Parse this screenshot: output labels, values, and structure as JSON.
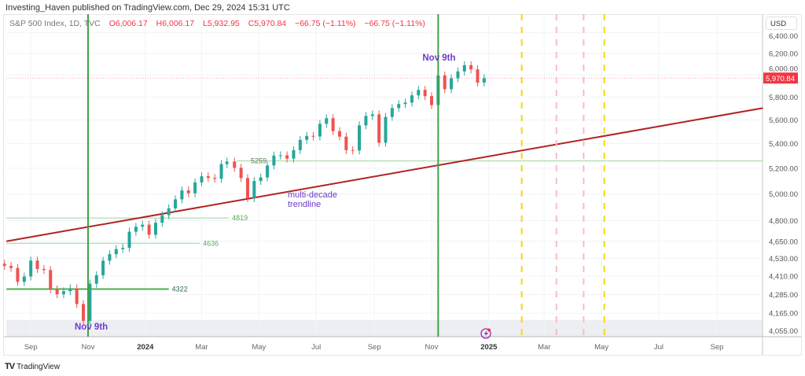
{
  "publisher_line": "Investing_Haven published on TradingView.com, Dec 29, 2024 15:31 UTC",
  "legend": {
    "symbol": "S&P 500 Index, 1D, TVC",
    "open": "O6,006.17",
    "high": "H6,006.17",
    "low": "L5,932.95",
    "close": "C5,970.84",
    "change1": "−66.75 (−1.11%)",
    "change2": "−66.75 (−1.11%)"
  },
  "currency": "USD",
  "colors": {
    "up": "#26a69a",
    "down": "#ef5350",
    "trendline": "#b22222",
    "level": "#4caf50",
    "level_light": "#9cd49c",
    "vline": "#43a047",
    "yellow_dash": "#f5d90a",
    "pink_dash": "#f8bbc8",
    "label": "#6e3cc8",
    "last_price": "#f23645"
  },
  "chart_data": {
    "type": "candlestick",
    "title": "",
    "y_scale": "log",
    "ylim": [
      4000,
      6450
    ],
    "xlim": [
      "2023-08-06",
      "2025-10-20"
    ],
    "grid": true,
    "y_ticks": [
      "6,400.00",
      "6,200.00",
      "6,000.00",
      "5,800.00",
      "5,600.00",
      "5,400.00",
      "5,200.00",
      "5,000.00",
      "4,800.00",
      "4,650.00",
      "4,530.00",
      "4,410.00",
      "4,285.00",
      "4,165.00",
      "4,055.00"
    ],
    "y_tick_values": [
      6400,
      6200,
      6000,
      5800,
      5600,
      5400,
      5200,
      5000,
      4800,
      4650,
      4530,
      4410,
      4285,
      4165,
      4055
    ],
    "x_ticks": [
      {
        "label": "Sep",
        "date": "2023-09-01"
      },
      {
        "label": "Nov",
        "date": "2023-11-01"
      },
      {
        "label": "2024",
        "date": "2024-01-01",
        "bold": true
      },
      {
        "label": "Mar",
        "date": "2024-03-01"
      },
      {
        "label": "May",
        "date": "2024-05-01"
      },
      {
        "label": "Jul",
        "date": "2024-07-01"
      },
      {
        "label": "Sep",
        "date": "2024-09-01"
      },
      {
        "label": "Nov",
        "date": "2024-11-01"
      },
      {
        "label": "2025",
        "date": "2025-01-01",
        "bold": true
      },
      {
        "label": "Mar",
        "date": "2025-03-01"
      },
      {
        "label": "May",
        "date": "2025-05-01"
      },
      {
        "label": "Jul",
        "date": "2025-07-01"
      },
      {
        "label": "Sep",
        "date": "2025-09-01"
      }
    ],
    "dates": [
      "2023-08-04",
      "2023-08-11",
      "2023-08-18",
      "2023-08-25",
      "2023-09-01",
      "2023-09-08",
      "2023-09-15",
      "2023-09-22",
      "2023-09-29",
      "2023-10-06",
      "2023-10-13",
      "2023-10-20",
      "2023-10-27",
      "2023-11-03",
      "2023-11-10",
      "2023-11-17",
      "2023-11-24",
      "2023-12-01",
      "2023-12-08",
      "2023-12-15",
      "2023-12-22",
      "2023-12-29",
      "2024-01-05",
      "2024-01-12",
      "2024-01-19",
      "2024-01-26",
      "2024-02-02",
      "2024-02-09",
      "2024-02-16",
      "2024-02-23",
      "2024-03-01",
      "2024-03-08",
      "2024-03-15",
      "2024-03-22",
      "2024-03-28",
      "2024-04-05",
      "2024-04-12",
      "2024-04-19",
      "2024-04-26",
      "2024-05-03",
      "2024-05-10",
      "2024-05-17",
      "2024-05-24",
      "2024-05-31",
      "2024-06-07",
      "2024-06-14",
      "2024-06-21",
      "2024-06-28",
      "2024-07-05",
      "2024-07-12",
      "2024-07-19",
      "2024-07-26",
      "2024-08-02",
      "2024-08-09",
      "2024-08-16",
      "2024-08-23",
      "2024-08-30",
      "2024-09-06",
      "2024-09-13",
      "2024-09-20",
      "2024-09-27",
      "2024-10-04",
      "2024-10-11",
      "2024-10-18",
      "2024-10-25",
      "2024-11-01",
      "2024-11-08",
      "2024-11-15",
      "2024-11-22",
      "2024-11-29",
      "2024-12-06",
      "2024-12-13",
      "2024-12-20",
      "2024-12-27"
    ],
    "close": [
      4478,
      4464,
      4370,
      4406,
      4515,
      4457,
      4450,
      4320,
      4288,
      4308,
      4327,
      4224,
      4117,
      4358,
      4415,
      4514,
      4559,
      4595,
      4604,
      4719,
      4755,
      4770,
      4697,
      4784,
      4840,
      4891,
      4959,
      5027,
      5005,
      5089,
      5137,
      5124,
      5117,
      5234,
      5254,
      5204,
      5123,
      4967,
      5100,
      5128,
      5223,
      5303,
      5305,
      5278,
      5347,
      5432,
      5465,
      5460,
      5567,
      5615,
      5505,
      5459,
      5347,
      5344,
      5554,
      5634,
      5648,
      5408,
      5626,
      5703,
      5738,
      5751,
      5815,
      5864,
      5808,
      5729,
      5995,
      5870,
      5969,
      6032,
      6090,
      6051,
      5930,
      5971
    ],
    "last_price": {
      "value": 5970.84,
      "label": "5,970.84"
    },
    "horizontal_levels": [
      {
        "value": 4322,
        "label": "4322",
        "from": "2023-08-06",
        "to": "2024-01-26",
        "style": "strong"
      },
      {
        "value": 4636,
        "label": "4636",
        "from": "2023-08-06",
        "to": "2024-02-28",
        "style": "light"
      },
      {
        "value": 4819,
        "label": "4819",
        "from": "2023-08-06",
        "to": "2024-03-30",
        "style": "light"
      },
      {
        "value": 5259,
        "label": "5259",
        "from": "2024-04-07",
        "to": "2025-10-20",
        "style": "light"
      }
    ],
    "trendline": {
      "points": [
        {
          "date": "2023-08-06",
          "value": 4650
        },
        {
          "date": "2025-10-20",
          "value": 5703
        }
      ],
      "label": "multi-decade\ntrendline"
    },
    "vertical_lines": [
      {
        "date": "2023-11-01",
        "label": "Nov 9th",
        "label_pos": "bottom"
      },
      {
        "date": "2024-11-08",
        "label": "Nov 9th",
        "label_pos": "top"
      }
    ],
    "dashed_lines": [
      {
        "date": "2025-02-05",
        "color": "yellow"
      },
      {
        "date": "2025-03-14",
        "color": "pink"
      },
      {
        "date": "2025-04-12",
        "color": "pink"
      },
      {
        "date": "2025-05-04",
        "color": "yellow"
      }
    ]
  },
  "footer": {
    "logo": "TradingView"
  }
}
